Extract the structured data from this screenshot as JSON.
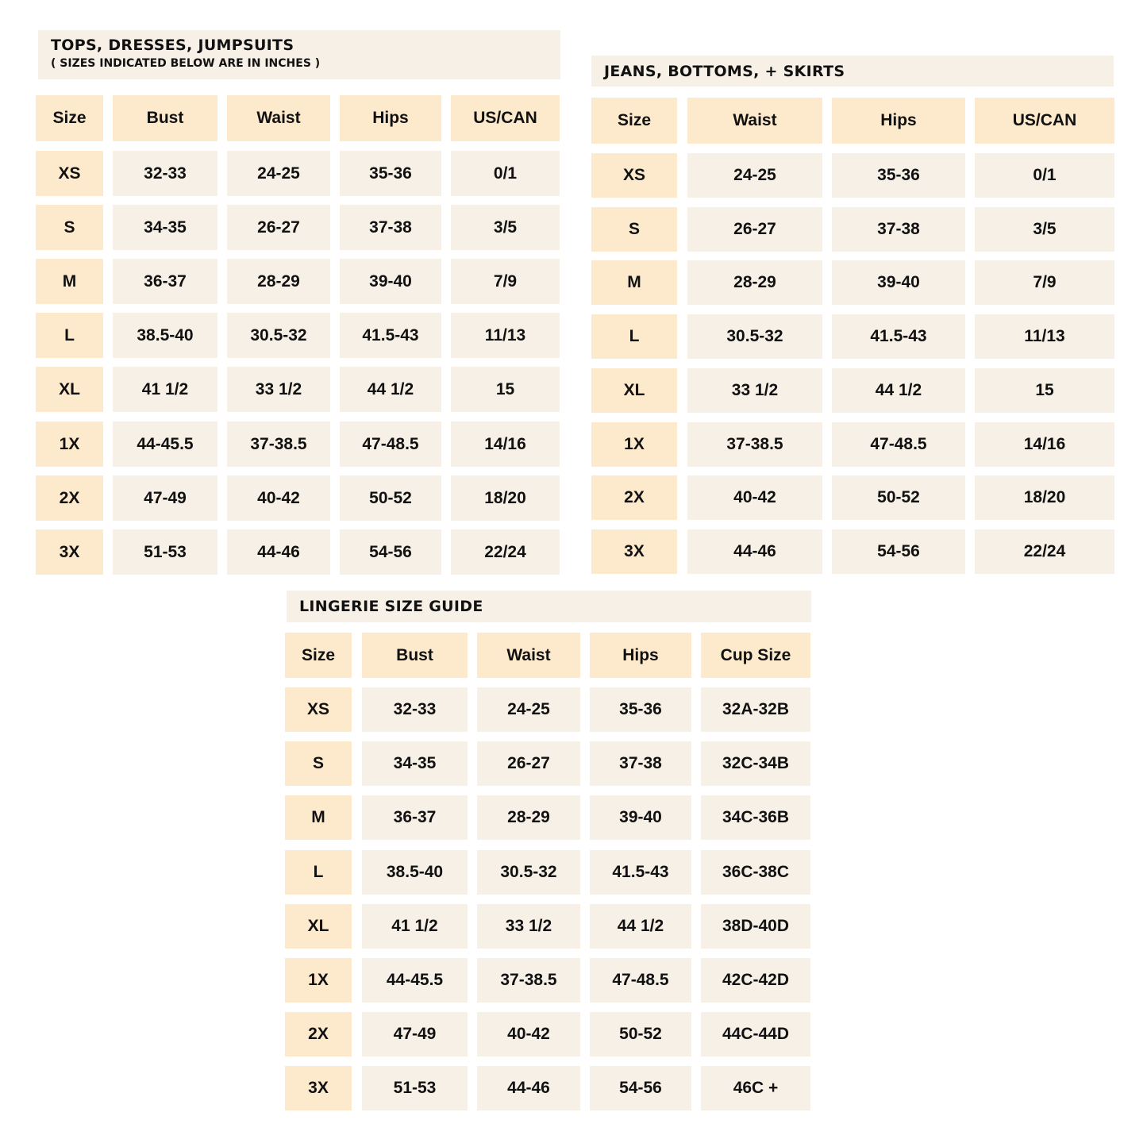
{
  "colors": {
    "header_cell": "#fde9cc",
    "body_cell": "#f7f0e6",
    "title_bg": "#f7f0e6",
    "text": "#111111"
  },
  "tables": [
    {
      "title": "TOPS, DRESSES, JUMPSUITS",
      "subtitle": "( SIZES INDICATED BELOW ARE IN INCHES )",
      "headers": [
        "Size",
        "Bust",
        "Waist",
        "Hips",
        "US/CAN"
      ],
      "rows": [
        [
          "XS",
          "32-33",
          "24-25",
          "35-36",
          "0/1"
        ],
        [
          "S",
          "34-35",
          "26-27",
          "37-38",
          "3/5"
        ],
        [
          "M",
          "36-37",
          "28-29",
          "39-40",
          "7/9"
        ],
        [
          "L",
          "38.5-40",
          "30.5-32",
          "41.5-43",
          "11/13"
        ],
        [
          "XL",
          "41 1/2",
          "33 1/2",
          "44 1/2",
          "15"
        ],
        [
          "1X",
          "44-45.5",
          "37-38.5",
          "47-48.5",
          "14/16"
        ],
        [
          "2X",
          "47-49",
          "40-42",
          "50-52",
          "18/20"
        ],
        [
          "3X",
          "51-53",
          "44-46",
          "54-56",
          "22/24"
        ]
      ]
    },
    {
      "title": "JEANS, BOTTOMS, + SKIRTS",
      "headers": [
        "Size",
        "Waist",
        "Hips",
        "US/CAN"
      ],
      "rows": [
        [
          "XS",
          "24-25",
          "35-36",
          "0/1"
        ],
        [
          "S",
          "26-27",
          "37-38",
          "3/5"
        ],
        [
          "M",
          "28-29",
          "39-40",
          "7/9"
        ],
        [
          "L",
          "30.5-32",
          "41.5-43",
          "11/13"
        ],
        [
          "XL",
          "33 1/2",
          "44 1/2",
          "15"
        ],
        [
          "1X",
          "37-38.5",
          "47-48.5",
          "14/16"
        ],
        [
          "2X",
          "40-42",
          "50-52",
          "18/20"
        ],
        [
          "3X",
          "44-46",
          "54-56",
          "22/24"
        ]
      ]
    },
    {
      "title": "LINGERIE SIZE GUIDE",
      "headers": [
        "Size",
        "Bust",
        "Waist",
        "Hips",
        "Cup Size"
      ],
      "rows": [
        [
          "XS",
          "32-33",
          "24-25",
          "35-36",
          "32A-32B"
        ],
        [
          "S",
          "34-35",
          "26-27",
          "37-38",
          "32C-34B"
        ],
        [
          "M",
          "36-37",
          "28-29",
          "39-40",
          "34C-36B"
        ],
        [
          "L",
          "38.5-40",
          "30.5-32",
          "41.5-43",
          "36C-38C"
        ],
        [
          "XL",
          "41 1/2",
          "33 1/2",
          "44 1/2",
          "38D-40D"
        ],
        [
          "1X",
          "44-45.5",
          "37-38.5",
          "47-48.5",
          "42C-42D"
        ],
        [
          "2X",
          "47-49",
          "40-42",
          "50-52",
          "44C-44D"
        ],
        [
          "3X",
          "51-53",
          "44-46",
          "54-56",
          "46C +"
        ]
      ]
    }
  ]
}
